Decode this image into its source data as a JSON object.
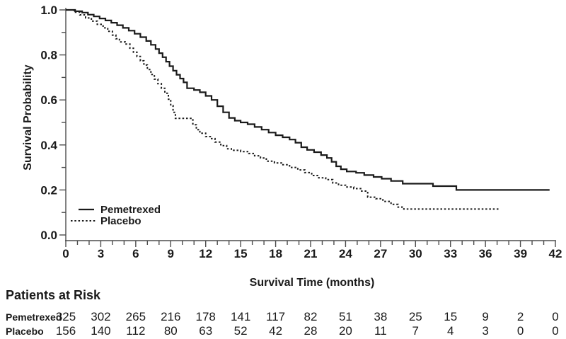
{
  "figure": {
    "background": "#ffffff",
    "text_color": "#1a1a1a",
    "axis_color": "#4d4d4d",
    "curve_color": "#1a1a1a"
  },
  "chart_data": {
    "type": "line",
    "subtype": "kaplan-meier-step",
    "title": "",
    "xlabel": "Survival Time (months)",
    "ylabel": "Survival Probability",
    "xlim": [
      0,
      42
    ],
    "ylim": [
      0.0,
      1.0
    ],
    "grid": false,
    "legend_position": "inside-lower-left",
    "x_major_ticks": [
      0,
      3,
      6,
      9,
      12,
      15,
      18,
      21,
      24,
      27,
      30,
      33,
      36,
      39,
      42
    ],
    "x_minor_tick_step": 1,
    "y_major_ticks": [
      0.0,
      0.2,
      0.4,
      0.6,
      0.8,
      1.0
    ],
    "y_tick_labels": [
      "0.0",
      "0.2",
      "0.4",
      "0.6",
      "0.8",
      "1.0"
    ],
    "y_minor_tick_step": 0.1,
    "series": [
      {
        "name": "Pemetrexed",
        "line_style": "solid",
        "color": "#1a1a1a",
        "points": [
          [
            0,
            1.0
          ],
          [
            0.8,
            0.994
          ],
          [
            1.4,
            0.988
          ],
          [
            1.9,
            0.979
          ],
          [
            2.4,
            0.971
          ],
          [
            2.9,
            0.962
          ],
          [
            3.4,
            0.953
          ],
          [
            3.9,
            0.943
          ],
          [
            4.4,
            0.932
          ],
          [
            4.9,
            0.92
          ],
          [
            5.4,
            0.908
          ],
          [
            5.9,
            0.894
          ],
          [
            6.4,
            0.879
          ],
          [
            6.9,
            0.862
          ],
          [
            7.3,
            0.845
          ],
          [
            7.7,
            0.826
          ],
          [
            8.0,
            0.808
          ],
          [
            8.3,
            0.79
          ],
          [
            8.6,
            0.77
          ],
          [
            8.9,
            0.75
          ],
          [
            9.2,
            0.73
          ],
          [
            9.5,
            0.712
          ],
          [
            9.8,
            0.695
          ],
          [
            10.1,
            0.678
          ],
          [
            10.4,
            0.652
          ],
          [
            11.0,
            0.644
          ],
          [
            11.5,
            0.634
          ],
          [
            12.0,
            0.618
          ],
          [
            12.5,
            0.6
          ],
          [
            13.0,
            0.572
          ],
          [
            13.5,
            0.545
          ],
          [
            14.0,
            0.52
          ],
          [
            14.5,
            0.508
          ],
          [
            15.0,
            0.5
          ],
          [
            15.6,
            0.492
          ],
          [
            16.2,
            0.48
          ],
          [
            16.8,
            0.468
          ],
          [
            17.4,
            0.455
          ],
          [
            18.0,
            0.443
          ],
          [
            18.6,
            0.434
          ],
          [
            19.2,
            0.424
          ],
          [
            19.7,
            0.41
          ],
          [
            20.2,
            0.39
          ],
          [
            20.7,
            0.378
          ],
          [
            21.3,
            0.368
          ],
          [
            21.9,
            0.355
          ],
          [
            22.4,
            0.342
          ],
          [
            22.8,
            0.325
          ],
          [
            23.2,
            0.305
          ],
          [
            23.6,
            0.292
          ],
          [
            24.1,
            0.282
          ],
          [
            24.9,
            0.276
          ],
          [
            25.6,
            0.266
          ],
          [
            26.4,
            0.258
          ],
          [
            27.1,
            0.25
          ],
          [
            27.9,
            0.24
          ],
          [
            28.9,
            0.228
          ],
          [
            31.5,
            0.217
          ],
          [
            33.5,
            0.2
          ],
          [
            41.5,
            0.2
          ]
        ]
      },
      {
        "name": "Placebo",
        "line_style": "dashed",
        "color": "#1a1a1a",
        "points": [
          [
            0,
            1.0
          ],
          [
            0.7,
            0.99
          ],
          [
            1.2,
            0.978
          ],
          [
            1.7,
            0.964
          ],
          [
            2.2,
            0.95
          ],
          [
            2.7,
            0.936
          ],
          [
            3.2,
            0.92
          ],
          [
            3.6,
            0.905
          ],
          [
            4.0,
            0.888
          ],
          [
            4.3,
            0.872
          ],
          [
            4.6,
            0.858
          ],
          [
            5.1,
            0.848
          ],
          [
            5.5,
            0.83
          ],
          [
            5.8,
            0.812
          ],
          [
            6.1,
            0.793
          ],
          [
            6.4,
            0.774
          ],
          [
            6.7,
            0.755
          ],
          [
            7.0,
            0.735
          ],
          [
            7.3,
            0.713
          ],
          [
            7.6,
            0.692
          ],
          [
            7.9,
            0.672
          ],
          [
            8.2,
            0.652
          ],
          [
            8.5,
            0.63
          ],
          [
            8.8,
            0.603
          ],
          [
            9.0,
            0.575
          ],
          [
            9.2,
            0.545
          ],
          [
            9.4,
            0.518
          ],
          [
            10.9,
            0.49
          ],
          [
            11.2,
            0.468
          ],
          [
            11.5,
            0.452
          ],
          [
            12.0,
            0.437
          ],
          [
            12.4,
            0.428
          ],
          [
            12.8,
            0.413
          ],
          [
            13.3,
            0.397
          ],
          [
            13.8,
            0.383
          ],
          [
            14.2,
            0.376
          ],
          [
            15.0,
            0.37
          ],
          [
            15.7,
            0.362
          ],
          [
            16.2,
            0.352
          ],
          [
            16.7,
            0.342
          ],
          [
            17.2,
            0.328
          ],
          [
            17.9,
            0.32
          ],
          [
            18.5,
            0.312
          ],
          [
            19.2,
            0.3
          ],
          [
            19.9,
            0.289
          ],
          [
            20.5,
            0.277
          ],
          [
            21.1,
            0.264
          ],
          [
            21.7,
            0.254
          ],
          [
            22.3,
            0.246
          ],
          [
            22.9,
            0.231
          ],
          [
            23.4,
            0.221
          ],
          [
            24.0,
            0.213
          ],
          [
            24.7,
            0.206
          ],
          [
            25.3,
            0.195
          ],
          [
            25.9,
            0.168
          ],
          [
            26.6,
            0.161
          ],
          [
            27.2,
            0.149
          ],
          [
            27.9,
            0.136
          ],
          [
            28.5,
            0.124
          ],
          [
            29.0,
            0.115
          ],
          [
            37.2,
            0.115
          ]
        ]
      }
    ]
  },
  "risk_table": {
    "title": "Patients at Risk",
    "time_points": [
      0,
      3,
      6,
      9,
      12,
      15,
      18,
      21,
      24,
      27,
      30,
      33,
      36,
      39,
      42
    ],
    "rows": [
      {
        "label": "Pemetrexed",
        "counts": [
          "325",
          "302",
          "265",
          "216",
          "178",
          "141",
          "117",
          "82",
          "51",
          "38",
          "25",
          "15",
          "9",
          "2",
          "0"
        ]
      },
      {
        "label": "Placebo",
        "counts": [
          "156",
          "140",
          "112",
          "80",
          "63",
          "52",
          "42",
          "28",
          "20",
          "11",
          "7",
          "4",
          "3",
          "0",
          "0"
        ]
      }
    ]
  }
}
